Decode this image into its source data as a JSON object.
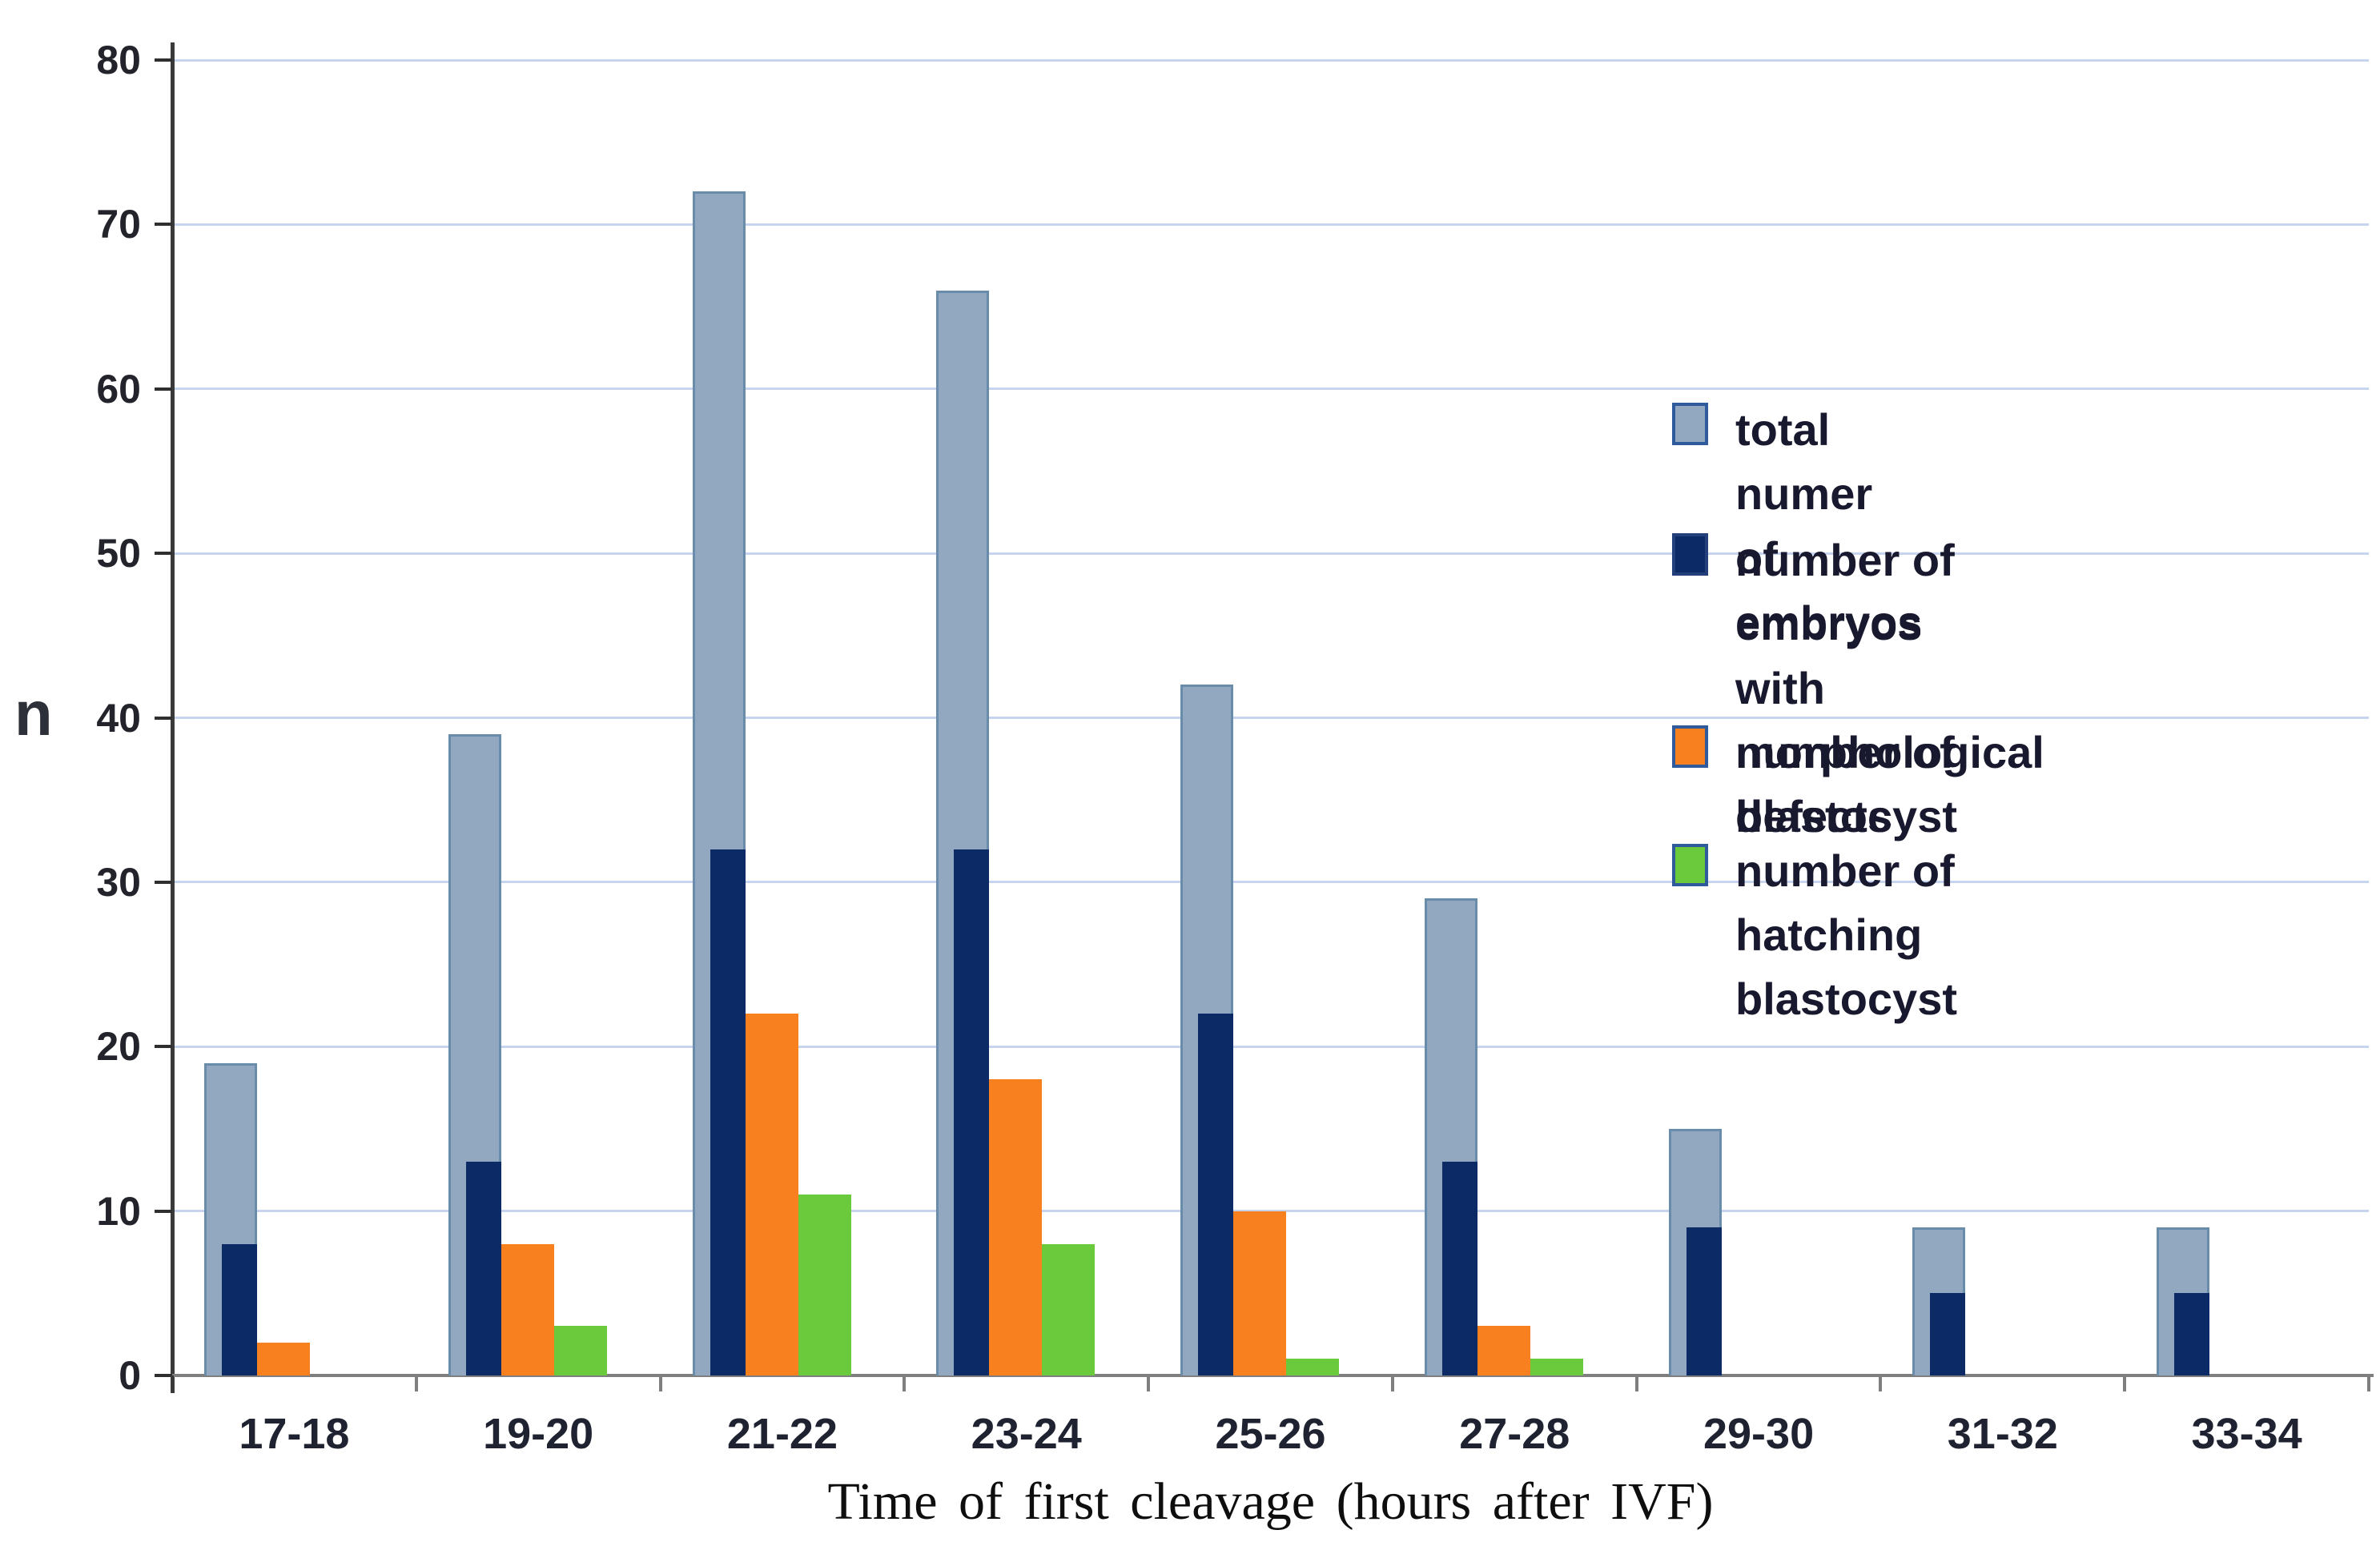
{
  "chart_data": {
    "type": "bar",
    "title": "",
    "xlabel": "Time of first cleavage (hours after IVF)",
    "ylabel": "n",
    "ylim": [
      0,
      80
    ],
    "ytick_step": 10,
    "grid": true,
    "legend_position": "right-inside",
    "categories": [
      "17-18",
      "19-20",
      "21-22",
      "23-24",
      "25-26",
      "27-28",
      "29-30",
      "31-32",
      "33-34"
    ],
    "series": [
      {
        "key": "total",
        "name": "total numer of embryos",
        "color": "#92A8C0",
        "values": [
          19,
          39,
          72,
          66,
          42,
          29,
          15,
          9,
          9
        ]
      },
      {
        "key": "defects",
        "name": "number of embryos\nwith morphological defects",
        "color": "#0B2A66",
        "values": [
          8,
          13,
          32,
          32,
          22,
          13,
          9,
          5,
          5
        ]
      },
      {
        "key": "blastocyst",
        "name": "number of blastocyst",
        "color": "#F8801F",
        "values": [
          2,
          8,
          22,
          18,
          10,
          3,
          0,
          0,
          0
        ]
      },
      {
        "key": "hatching",
        "name": "number of hatching blastocyst",
        "color": "#6BCA3B",
        "values": [
          0,
          3,
          11,
          8,
          1,
          1,
          0,
          0,
          0
        ]
      }
    ],
    "colors": {
      "gridline": "#C7D4F0",
      "y_axis": "#3A3A3A",
      "x_axis": "#7F7F7F",
      "legend_swatch_border": "#2F5B9D"
    }
  }
}
